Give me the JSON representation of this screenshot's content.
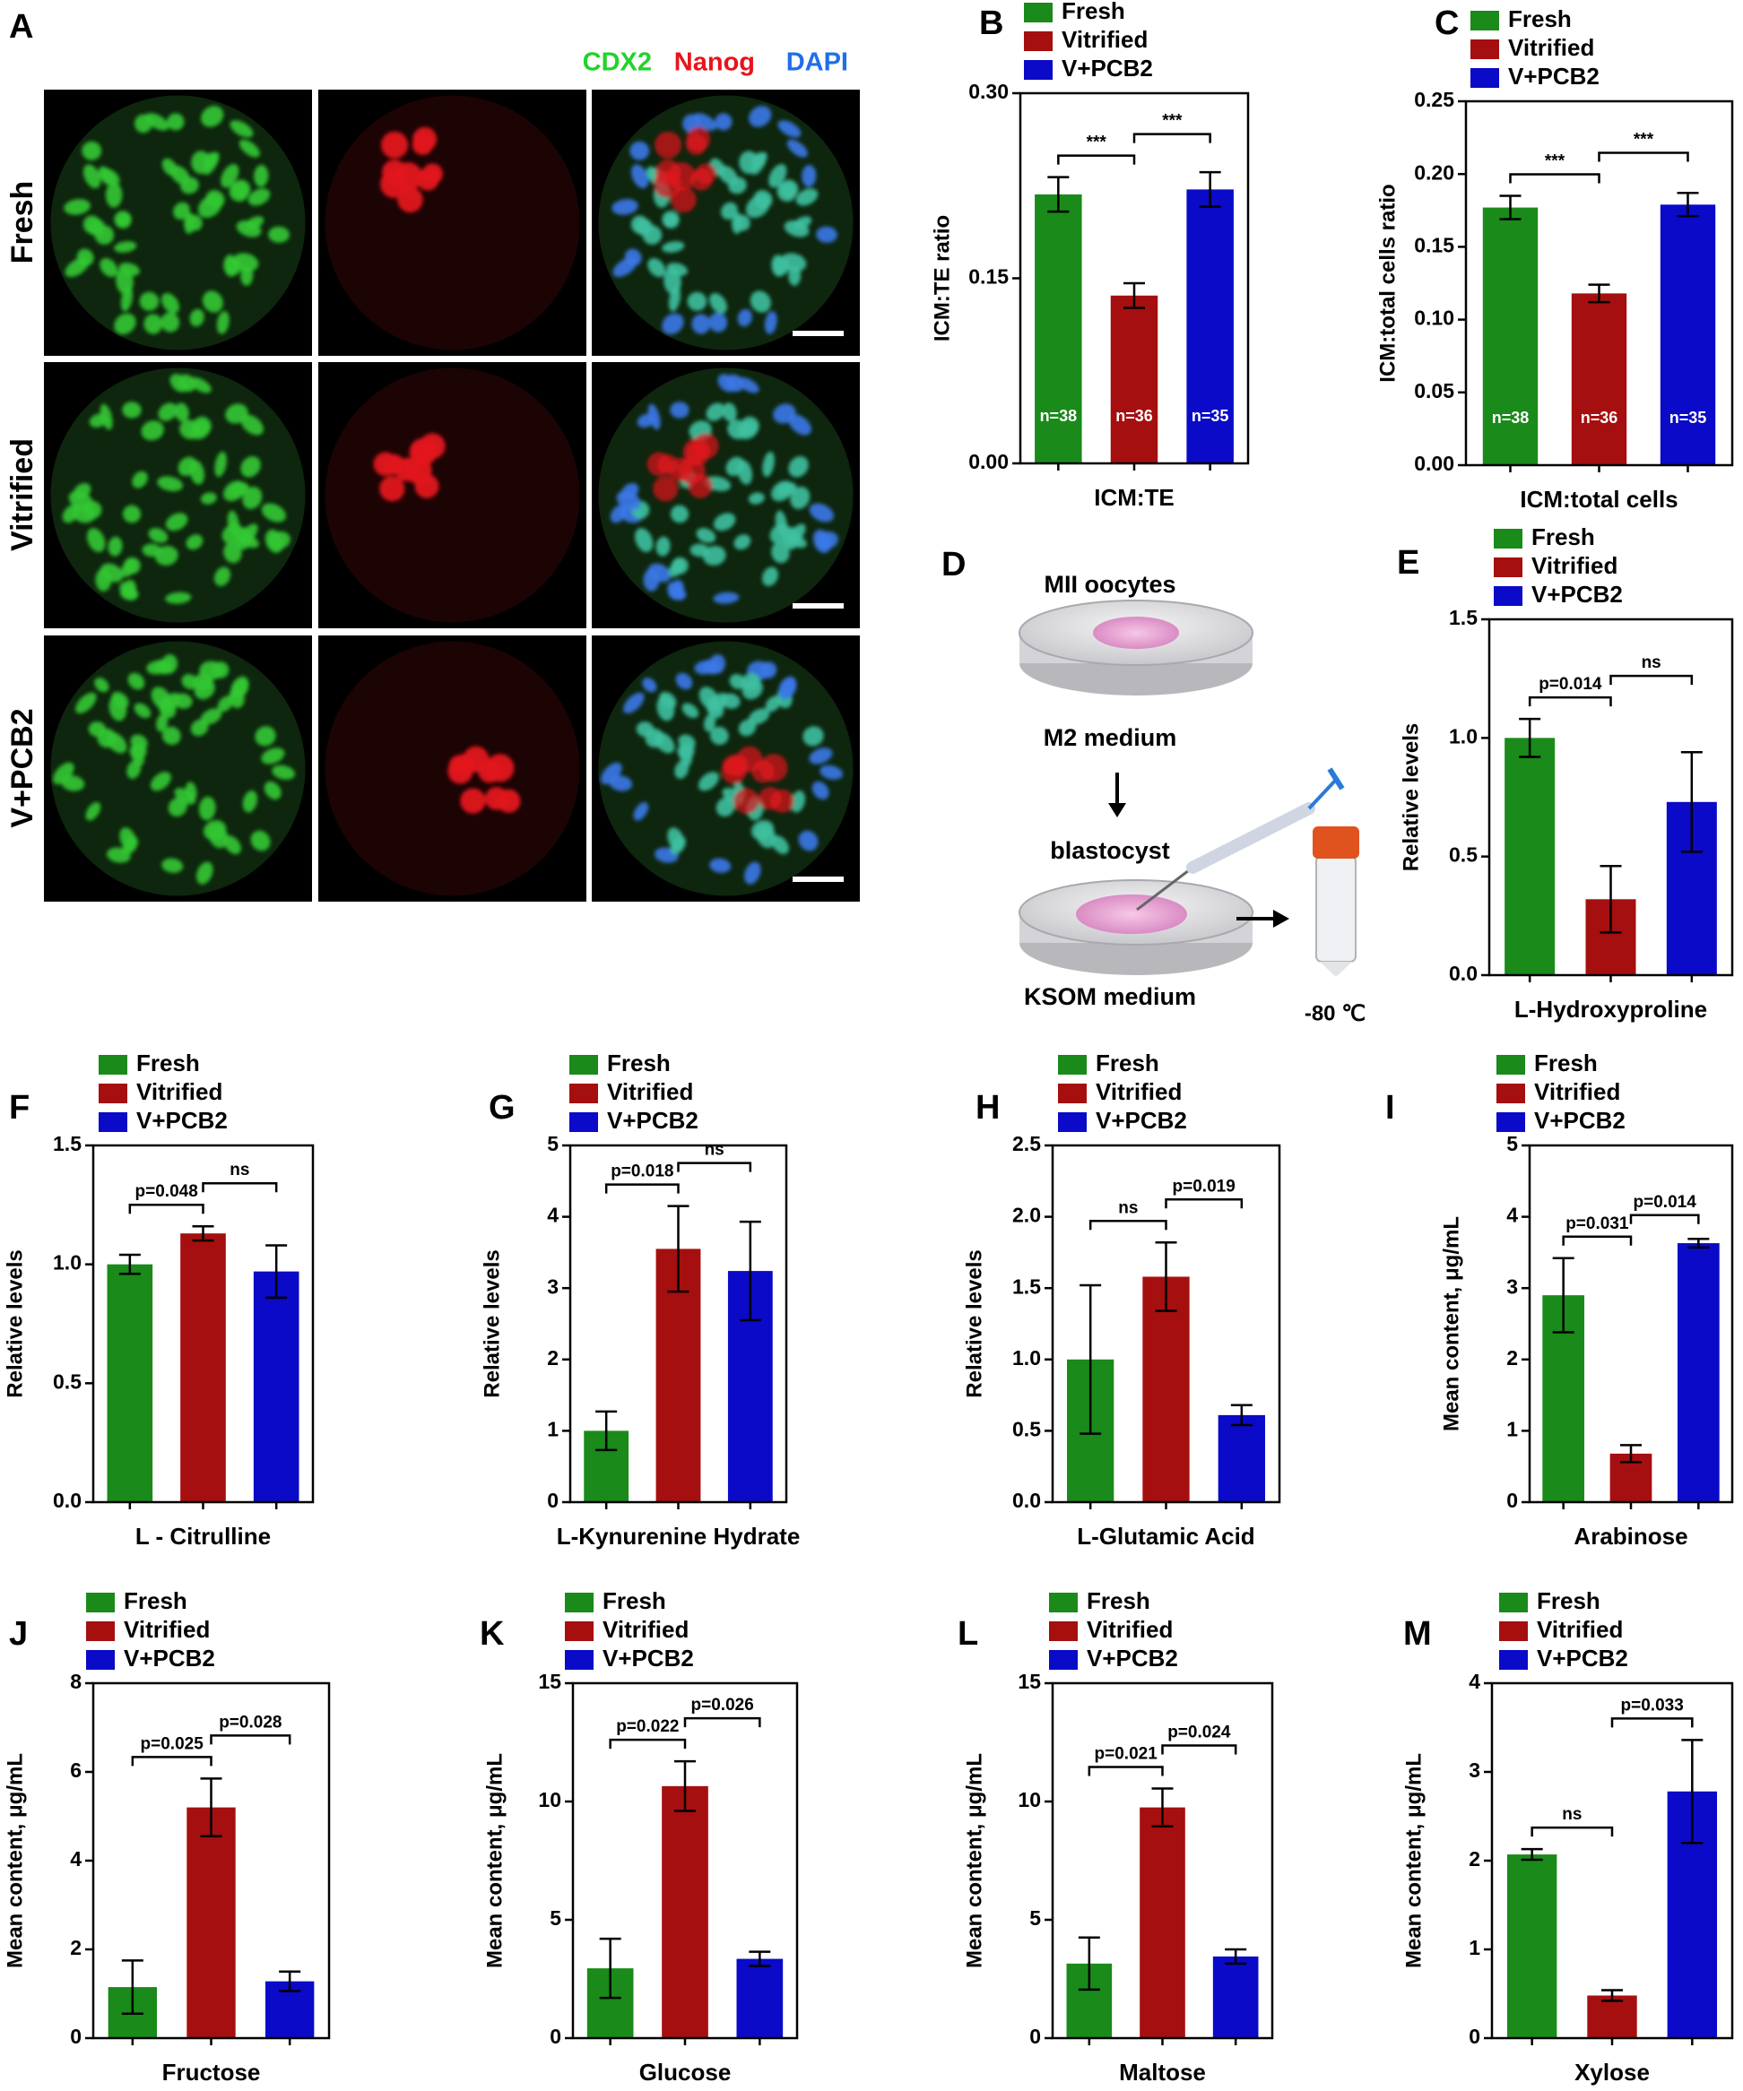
{
  "panel_a": {
    "label": "A",
    "channels": [
      "CDX2",
      "Nanog",
      "DAPI"
    ],
    "rows": [
      "Fresh",
      "Vitrified",
      "V+PCB2"
    ]
  },
  "panel_d": {
    "label": "D",
    "top_dish": "MII oocytes",
    "top_medium": "M2 medium",
    "middle": "blastocyst",
    "bottom_medium": "KSOM medium",
    "storage": "-80 ℃"
  },
  "chart_data": [
    {
      "type": "bar",
      "label": "B",
      "xlabel": "ICM:TE",
      "ylabel": "ICM:TE ratio",
      "ylim": [
        0,
        0.3
      ],
      "yticks": [
        {
          "value": 0,
          "label": "0.00"
        },
        {
          "value": 0.15,
          "label": "0.15"
        },
        {
          "value": 0.3,
          "label": "0.30"
        }
      ],
      "series": [
        {
          "name": "Fresh",
          "color": "#1a8a1a",
          "values": [
            0.218
          ],
          "errors": [
            0.014
          ],
          "n_label": "n=38"
        },
        {
          "name": "Vitrified",
          "color": "#a50f0f",
          "values": [
            0.136
          ],
          "errors": [
            0.01
          ],
          "n_label": "n=36"
        },
        {
          "name": "V+PCB2",
          "color": "#0a0ac8",
          "values": [
            0.222
          ],
          "errors": [
            0.014
          ],
          "n_label": "n=35"
        }
      ],
      "comparisons": [
        {
          "groups": [
            "Fresh",
            "Vitrified"
          ],
          "label": "***"
        },
        {
          "groups": [
            "Vitrified",
            "V+PCB2"
          ],
          "label": "***"
        }
      ]
    },
    {
      "type": "bar",
      "label": "C",
      "xlabel": "ICM:total cells",
      "ylabel": "ICM:total cells ratio",
      "ylim": [
        0,
        0.25
      ],
      "yticks": [
        {
          "value": 0,
          "label": "0.00"
        },
        {
          "value": 0.05,
          "label": "0.05"
        },
        {
          "value": 0.1,
          "label": "0.10"
        },
        {
          "value": 0.15,
          "label": "0.15"
        },
        {
          "value": 0.2,
          "label": "0.20"
        },
        {
          "value": 0.25,
          "label": "0.25"
        }
      ],
      "series": [
        {
          "name": "Fresh",
          "color": "#1a8a1a",
          "values": [
            0.177
          ],
          "errors": [
            0.008
          ],
          "n_label": "n=38"
        },
        {
          "name": "Vitrified",
          "color": "#a50f0f",
          "values": [
            0.118
          ],
          "errors": [
            0.006
          ],
          "n_label": "n=36"
        },
        {
          "name": "V+PCB2",
          "color": "#0a0ac8",
          "values": [
            0.179
          ],
          "errors": [
            0.008
          ],
          "n_label": "n=35"
        }
      ],
      "comparisons": [
        {
          "groups": [
            "Fresh",
            "Vitrified"
          ],
          "label": "***"
        },
        {
          "groups": [
            "Vitrified",
            "V+PCB2"
          ],
          "label": "***"
        }
      ]
    },
    {
      "type": "bar",
      "label": "E",
      "xlabel": "L-Hydroxyproline",
      "ylabel": "Relative levels",
      "ylim": [
        0,
        1.5
      ],
      "yticks": [
        {
          "value": 0,
          "label": "0.0"
        },
        0.5,
        {
          "value": 1,
          "label": "1.0"
        },
        1.5
      ],
      "series": [
        {
          "name": "Fresh",
          "color": "#1a8a1a",
          "values": [
            1.0
          ],
          "errors": [
            0.08
          ]
        },
        {
          "name": "Vitrified",
          "color": "#a50f0f",
          "values": [
            0.32
          ],
          "errors": [
            0.14
          ]
        },
        {
          "name": "V+PCB2",
          "color": "#0a0ac8",
          "values": [
            0.73
          ],
          "errors": [
            0.21
          ]
        }
      ],
      "comparisons": [
        {
          "groups": [
            "Fresh",
            "Vitrified"
          ],
          "label": "p=0.014"
        },
        {
          "groups": [
            "Vitrified",
            "V+PCB2"
          ],
          "label": "ns"
        }
      ]
    },
    {
      "type": "bar",
      "label": "F",
      "xlabel": "L - Citrulline",
      "ylabel": "Relative levels",
      "ylim": [
        0,
        1.5
      ],
      "yticks": [
        {
          "value": 0,
          "label": "0.0"
        },
        0.5,
        {
          "value": 1,
          "label": "1.0"
        },
        1.5
      ],
      "series": [
        {
          "name": "Fresh",
          "color": "#1a8a1a",
          "values": [
            1.0
          ],
          "errors": [
            0.04
          ]
        },
        {
          "name": "Vitrified",
          "color": "#a50f0f",
          "values": [
            1.13
          ],
          "errors": [
            0.03
          ]
        },
        {
          "name": "V+PCB2",
          "color": "#0a0ac8",
          "values": [
            0.97
          ],
          "errors": [
            0.11
          ]
        }
      ],
      "comparisons": [
        {
          "groups": [
            "Fresh",
            "Vitrified"
          ],
          "label": "p=0.048"
        },
        {
          "groups": [
            "Vitrified",
            "V+PCB2"
          ],
          "label": "ns"
        }
      ]
    },
    {
      "type": "bar",
      "label": "G",
      "xlabel": "L-Kynurenine Hydrate",
      "ylabel": "Relative levels",
      "ylim": [
        0,
        5
      ],
      "yticks": [
        0,
        1,
        2,
        3,
        4,
        5
      ],
      "series": [
        {
          "name": "Fresh",
          "color": "#1a8a1a",
          "values": [
            1.0
          ],
          "errors": [
            0.27
          ]
        },
        {
          "name": "Vitrified",
          "color": "#a50f0f",
          "values": [
            3.55
          ],
          "errors": [
            0.6
          ]
        },
        {
          "name": "V+PCB2",
          "color": "#0a0ac8",
          "values": [
            3.24
          ],
          "errors": [
            0.69
          ]
        }
      ],
      "comparisons": [
        {
          "groups": [
            "Fresh",
            "Vitrified"
          ],
          "label": "p=0.018"
        },
        {
          "groups": [
            "Vitrified",
            "V+PCB2"
          ],
          "label": "ns"
        }
      ]
    },
    {
      "type": "bar",
      "label": "H",
      "xlabel": "L-Glutamic Acid",
      "ylabel": "Relative levels",
      "ylim": [
        0,
        2.5
      ],
      "yticks": [
        {
          "value": 0,
          "label": "0.0"
        },
        0.5,
        {
          "value": 1,
          "label": "1.0"
        },
        1.5,
        {
          "value": 2,
          "label": "2.0"
        },
        2.5
      ],
      "series": [
        {
          "name": "Fresh",
          "color": "#1a8a1a",
          "values": [
            1.0
          ],
          "errors": [
            0.52
          ]
        },
        {
          "name": "Vitrified",
          "color": "#a50f0f",
          "values": [
            1.58
          ],
          "errors": [
            0.24
          ]
        },
        {
          "name": "V+PCB2",
          "color": "#0a0ac8",
          "values": [
            0.61
          ],
          "errors": [
            0.07
          ]
        }
      ],
      "comparisons": [
        {
          "groups": [
            "Fresh",
            "Vitrified"
          ],
          "label": "ns"
        },
        {
          "groups": [
            "Vitrified",
            "V+PCB2"
          ],
          "label": "p=0.019"
        }
      ]
    },
    {
      "type": "bar",
      "label": "I",
      "xlabel": "Arabinose",
      "ylabel": "Mean content, μg/mL",
      "ylim": [
        0,
        5
      ],
      "yticks": [
        0,
        1,
        2,
        3,
        4,
        5
      ],
      "series": [
        {
          "name": "Fresh",
          "color": "#1a8a1a",
          "values": [
            2.9
          ],
          "errors": [
            0.52
          ]
        },
        {
          "name": "Vitrified",
          "color": "#a50f0f",
          "values": [
            0.68
          ],
          "errors": [
            0.12
          ]
        },
        {
          "name": "V+PCB2",
          "color": "#0a0ac8",
          "values": [
            3.63
          ],
          "errors": [
            0.06
          ]
        }
      ],
      "comparisons": [
        {
          "groups": [
            "Fresh",
            "Vitrified"
          ],
          "label": "p=0.031"
        },
        {
          "groups": [
            "Vitrified",
            "V+PCB2"
          ],
          "label": "p=0.014"
        }
      ]
    },
    {
      "type": "bar",
      "label": "J",
      "xlabel": "Fructose",
      "ylabel": "Mean content, μg/mL",
      "ylim": [
        0,
        8
      ],
      "yticks": [
        0,
        2,
        4,
        6,
        8
      ],
      "series": [
        {
          "name": "Fresh",
          "color": "#1a8a1a",
          "values": [
            1.15
          ],
          "errors": [
            0.6
          ]
        },
        {
          "name": "Vitrified",
          "color": "#a50f0f",
          "values": [
            5.2
          ],
          "errors": [
            0.65
          ]
        },
        {
          "name": "V+PCB2",
          "color": "#0a0ac8",
          "values": [
            1.28
          ],
          "errors": [
            0.22
          ]
        }
      ],
      "comparisons": [
        {
          "groups": [
            "Fresh",
            "Vitrified"
          ],
          "label": "p=0.025"
        },
        {
          "groups": [
            "Vitrified",
            "V+PCB2"
          ],
          "label": "p=0.028"
        }
      ]
    },
    {
      "type": "bar",
      "label": "K",
      "xlabel": "Glucose",
      "ylabel": "Mean content, μg/mL",
      "ylim": [
        0,
        15
      ],
      "yticks": [
        0,
        5,
        10,
        15
      ],
      "series": [
        {
          "name": "Fresh",
          "color": "#1a8a1a",
          "values": [
            2.95
          ],
          "errors": [
            1.25
          ]
        },
        {
          "name": "Vitrified",
          "color": "#a50f0f",
          "values": [
            10.65
          ],
          "errors": [
            1.05
          ]
        },
        {
          "name": "V+PCB2",
          "color": "#0a0ac8",
          "values": [
            3.35
          ],
          "errors": [
            0.3
          ]
        }
      ],
      "comparisons": [
        {
          "groups": [
            "Fresh",
            "Vitrified"
          ],
          "label": "p=0.022"
        },
        {
          "groups": [
            "Vitrified",
            "V+PCB2"
          ],
          "label": "p=0.026"
        }
      ]
    },
    {
      "type": "bar",
      "label": "L",
      "xlabel": "Maltose",
      "ylabel": "Mean content, μg/mL",
      "ylim": [
        0,
        15
      ],
      "yticks": [
        0,
        5,
        10,
        15
      ],
      "series": [
        {
          "name": "Fresh",
          "color": "#1a8a1a",
          "values": [
            3.15
          ],
          "errors": [
            1.1
          ]
        },
        {
          "name": "Vitrified",
          "color": "#a50f0f",
          "values": [
            9.75
          ],
          "errors": [
            0.8
          ]
        },
        {
          "name": "V+PCB2",
          "color": "#0a0ac8",
          "values": [
            3.45
          ],
          "errors": [
            0.3
          ]
        }
      ],
      "comparisons": [
        {
          "groups": [
            "Fresh",
            "Vitrified"
          ],
          "label": "p=0.021"
        },
        {
          "groups": [
            "Vitrified",
            "V+PCB2"
          ],
          "label": "p=0.024"
        }
      ]
    },
    {
      "type": "bar",
      "label": "M",
      "xlabel": "Xylose",
      "ylabel": "Mean content, μg/mL",
      "ylim": [
        0,
        4
      ],
      "yticks": [
        0,
        1,
        2,
        3,
        4
      ],
      "series": [
        {
          "name": "Fresh",
          "color": "#1a8a1a",
          "values": [
            2.07
          ],
          "errors": [
            0.06
          ]
        },
        {
          "name": "Vitrified",
          "color": "#a50f0f",
          "values": [
            0.48
          ],
          "errors": [
            0.06
          ]
        },
        {
          "name": "V+PCB2",
          "color": "#0a0ac8",
          "values": [
            2.78
          ],
          "errors": [
            0.58
          ]
        }
      ],
      "comparisons": [
        {
          "groups": [
            "Fresh",
            "Vitrified"
          ],
          "label": "ns"
        },
        {
          "groups": [
            "Vitrified",
            "V+PCB2"
          ],
          "label": "p=0.033"
        }
      ]
    }
  ]
}
